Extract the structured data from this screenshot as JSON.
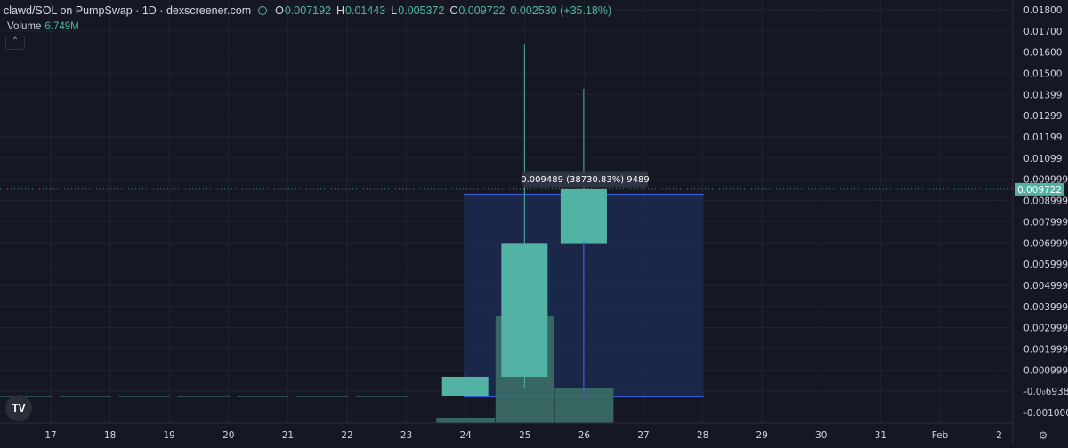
{
  "header": {
    "symbol": "clawd/SOL on PumpSwap · 1D · dexscreener.com",
    "ohlc": [
      {
        "key": "O",
        "value": "0.007192"
      },
      {
        "key": "H",
        "value": "0.01443"
      },
      {
        "key": "L",
        "value": "0.005372"
      },
      {
        "key": "C",
        "value": "0.009722"
      }
    ],
    "change": "0.002530 (+35.18%)",
    "eye_icon": "eye-icon"
  },
  "volume": {
    "label": "Volume",
    "value": "6.749M",
    "collapse_icon": "chevron-up-icon"
  },
  "logo_text": "TV",
  "settings_icon": "gear-icon",
  "colors": {
    "background": "#151822",
    "up": "#52b3a5",
    "volume": "#3b6e66",
    "grid": "#1f2330",
    "axis_text": "#d1d4dc",
    "measure_fill": "#1c2a4f",
    "measure_border": "#3b5bd6"
  },
  "chart_data": {
    "type": "candlestick",
    "x_ticks": [
      "17",
      "18",
      "19",
      "20",
      "21",
      "22",
      "23",
      "24",
      "25",
      "26",
      "27",
      "28",
      "29",
      "30",
      "31",
      "Feb",
      "2"
    ],
    "y_tick_labels": [
      "0.01800",
      "0.01700",
      "0.01600",
      "0.01500",
      "0.01399",
      "0.01299",
      "0.01199",
      "0.01099",
      "0.009999",
      "0.008999",
      "0.007999",
      "0.006999",
      "0.005999",
      "0.004999",
      "0.003999",
      "0.002999",
      "0.001999",
      "0.0009999",
      "-0.0₀6938",
      "-0.001000"
    ],
    "y_range": [
      -0.00125,
      0.0186
    ],
    "last_price_label": "0.009722",
    "last_price": 0.009722,
    "candles": [
      {
        "date": "24",
        "open": 0.0,
        "high": 0.0011,
        "low": 0.0,
        "close": 0.00092
      },
      {
        "date": "25",
        "open": 0.00092,
        "high": 0.0165,
        "low": 0.0004,
        "close": 0.0072
      },
      {
        "date": "26",
        "open": 0.007192,
        "high": 0.01443,
        "low": 0.005372,
        "close": 0.009722
      }
    ],
    "volume": [
      {
        "date": "24",
        "value": 0.3
      },
      {
        "date": "25",
        "value": 6.0
      },
      {
        "date": "26",
        "value": 2.0
      }
    ],
    "measure": {
      "label": "0.009489 (38730.83%) 9489",
      "from_date": "24",
      "to_date": "28",
      "from_price": -2e-05,
      "to_price": 0.009489
    }
  }
}
